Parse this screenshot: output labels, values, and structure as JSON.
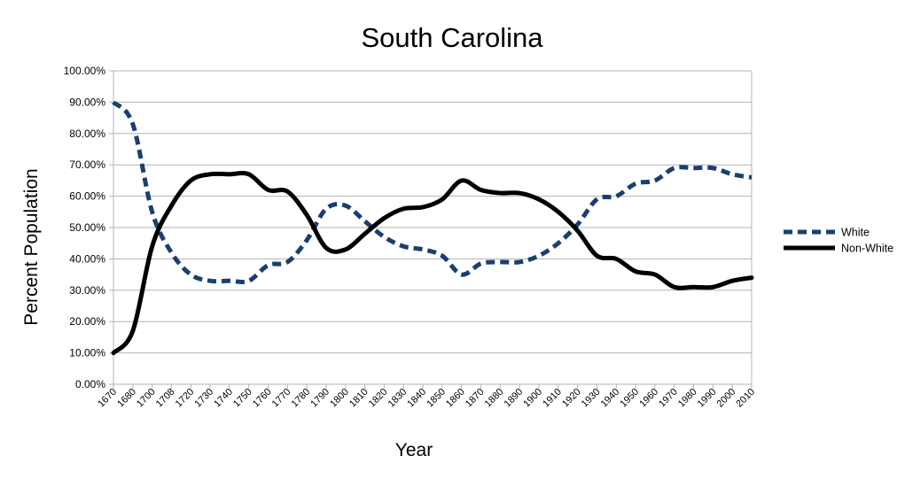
{
  "chart_data": {
    "type": "line",
    "title": "South Carolina",
    "xlabel": "Year",
    "ylabel": "Percent Population",
    "ylim": [
      0,
      100
    ],
    "y_tick_step": 10,
    "y_tick_format": "percent_2dp",
    "grid": "horizontal",
    "legend_position": "right",
    "x": [
      "1670",
      "1680",
      "1700",
      "1708",
      "1720",
      "1730",
      "1740",
      "1750",
      "1760",
      "1770",
      "1780",
      "1790",
      "1800",
      "1810",
      "1820",
      "1830",
      "1840",
      "1850",
      "1860",
      "1870",
      "1880",
      "1890",
      "1900",
      "1910",
      "1920",
      "1930",
      "1940",
      "1950",
      "1960",
      "1970",
      "1980",
      "1990",
      "2000",
      "2010"
    ],
    "series": [
      {
        "name": "White",
        "color": "#1a3f6f",
        "style": "dashed",
        "values": [
          90,
          83,
          55,
          42,
          35,
          33,
          33,
          33,
          38,
          39,
          46,
          56,
          57,
          52,
          47,
          44,
          43,
          41,
          35,
          38.5,
          39,
          39,
          41,
          45,
          51,
          59,
          60,
          64,
          65,
          69,
          69,
          69,
          67,
          66
        ]
      },
      {
        "name": "Non-White",
        "color": "#000000",
        "style": "solid",
        "values": [
          10,
          17,
          44,
          57,
          65,
          67,
          67,
          67,
          62,
          61.5,
          54,
          43.5,
          43,
          48,
          53,
          56,
          56.5,
          59,
          65,
          62,
          61,
          61,
          59,
          55,
          49,
          41,
          40,
          36,
          35,
          31,
          31,
          31,
          33,
          34
        ]
      }
    ]
  }
}
